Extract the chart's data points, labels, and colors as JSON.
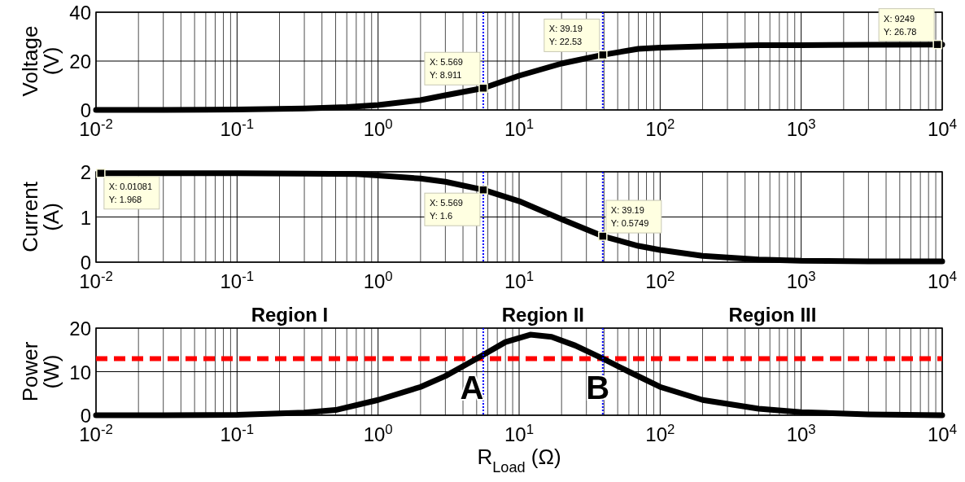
{
  "chart_data": [
    {
      "type": "line",
      "ylabel": "Voltage\n(V)",
      "log": "x",
      "grid": true,
      "xlim": [
        0.01,
        10000
      ],
      "ylim": [
        0,
        40
      ],
      "yticks": [
        0,
        20,
        40
      ],
      "xticks": [
        {
          "value": 0.01,
          "label": "10$^{-2}$"
        },
        {
          "value": 0.1,
          "label": "10$^{-1}$"
        },
        {
          "value": 1,
          "label": "10$^{0}$"
        },
        {
          "value": 10,
          "label": "10$^{1}$"
        },
        {
          "value": 100,
          "label": "10$^{2}$"
        },
        {
          "value": 1000,
          "label": "10$^{3}$"
        },
        {
          "value": 10000,
          "label": "10$^{4}$"
        }
      ],
      "series": [
        {
          "color": "#000000",
          "x": [
            0.01,
            0.03,
            0.1,
            0.3,
            0.6,
            1,
            2,
            3,
            5.569,
            10,
            20,
            39.19,
            70,
            100,
            200,
            500,
            1000,
            3000,
            9249,
            10000
          ],
          "values": [
            0,
            0,
            0.2,
            0.6,
            1.2,
            2,
            4,
            6,
            8.911,
            14,
            19,
            22.53,
            25,
            25.5,
            26,
            26.5,
            26.5,
            26.7,
            26.78,
            26.78
          ]
        }
      ],
      "ref_lines": [
        {
          "axis": "x",
          "value": 5.569,
          "color": "#0000ff",
          "line_style": "dotted"
        },
        {
          "axis": "x",
          "value": 39.19,
          "color": "#0000ff",
          "line_style": "dotted"
        }
      ],
      "annotations": [
        {
          "text": "X: 5.569\nY: 8.911",
          "x": 5.569,
          "y": 8.911
        },
        {
          "text": "X: 39.19\nY: 22.53",
          "x": 39.19,
          "y": 22.53
        },
        {
          "text": "X: 9249\nY: 26.78",
          "x": 9249,
          "y": 26.78
        }
      ]
    },
    {
      "type": "line",
      "ylabel": "Current\n(A)",
      "log": "x",
      "grid": true,
      "xlim": [
        0.01,
        10000
      ],
      "ylim": [
        0,
        2
      ],
      "yticks": [
        0,
        1,
        2
      ],
      "xticks": [
        {
          "value": 0.01,
          "label": "10$^{-2}$"
        },
        {
          "value": 0.1,
          "label": "10$^{-1}$"
        },
        {
          "value": 1,
          "label": "10$^{0}$"
        },
        {
          "value": 10,
          "label": "10$^{1}$"
        },
        {
          "value": 100,
          "label": "10$^{2}$"
        },
        {
          "value": 1000,
          "label": "10$^{3}$"
        },
        {
          "value": 10000,
          "label": "10$^{4}$"
        }
      ],
      "series": [
        {
          "color": "#000000",
          "x": [
            0.01081,
            0.03,
            0.1,
            0.3,
            0.7,
            1,
            2,
            3,
            5.569,
            10,
            20,
            39.19,
            70,
            100,
            200,
            500,
            1000,
            3000,
            10000
          ],
          "values": [
            1.968,
            1.97,
            1.97,
            1.96,
            1.95,
            1.92,
            1.85,
            1.78,
            1.6,
            1.35,
            0.95,
            0.5749,
            0.36,
            0.27,
            0.14,
            0.06,
            0.03,
            0.02,
            0.02
          ]
        }
      ],
      "ref_lines": [
        {
          "axis": "x",
          "value": 5.569,
          "color": "#0000ff",
          "line_style": "dotted"
        },
        {
          "axis": "x",
          "value": 39.19,
          "color": "#0000ff",
          "line_style": "dotted"
        }
      ],
      "annotations": [
        {
          "text": "X: 0.01081\nY: 1.968",
          "x": 0.01081,
          "y": 1.968
        },
        {
          "text": "X: 5.569\nY: 1.6",
          "x": 5.569,
          "y": 1.6
        },
        {
          "text": "X: 39.19\nY: 0.5749",
          "x": 39.19,
          "y": 0.5749
        }
      ]
    },
    {
      "type": "line",
      "ylabel": "Power\n(W)",
      "xlabel": "R$_{Load}$ (Ω)",
      "log": "x",
      "grid": true,
      "xlim": [
        0.01,
        10000
      ],
      "ylim": [
        0,
        20
      ],
      "yticks": [
        0,
        10,
        20
      ],
      "xticks": [
        {
          "value": 0.01,
          "label": "10$^{-2}$"
        },
        {
          "value": 0.1,
          "label": "10$^{-1}$"
        },
        {
          "value": 1,
          "label": "10$^{0}$"
        },
        {
          "value": 10,
          "label": "10$^{1}$"
        },
        {
          "value": 100,
          "label": "10$^{2}$"
        },
        {
          "value": 1000,
          "label": "10$^{3}$"
        },
        {
          "value": 10000,
          "label": "10$^{4}$"
        }
      ],
      "series": [
        {
          "color": "#000000",
          "x": [
            0.01,
            0.03,
            0.1,
            0.3,
            0.5,
            1,
            2,
            3,
            5,
            8,
            12,
            17,
            25,
            39.19,
            60,
            100,
            200,
            500,
            1000,
            3000,
            10000
          ],
          "values": [
            0,
            0,
            0.1,
            0.6,
            1.2,
            3.5,
            6.5,
            9,
            13,
            16.8,
            18.5,
            18,
            16,
            13,
            10,
            6.5,
            3.5,
            1.5,
            0.7,
            0.2,
            0
          ]
        }
      ],
      "ref_lines": [
        {
          "axis": "y",
          "value": 13,
          "color": "#ff0000",
          "line_style": "dashed"
        },
        {
          "axis": "x",
          "value": 5.569,
          "color": "#0000ff",
          "line_style": "dotted"
        },
        {
          "axis": "x",
          "value": 39.19,
          "color": "#0000ff",
          "line_style": "dotted"
        }
      ],
      "annotations": [
        "Region I",
        "Region II",
        "Region III",
        {
          "text": "A",
          "x": 5,
          "y": 13
        },
        {
          "text": "B",
          "x": 39.19,
          "y": 13
        }
      ]
    }
  ]
}
